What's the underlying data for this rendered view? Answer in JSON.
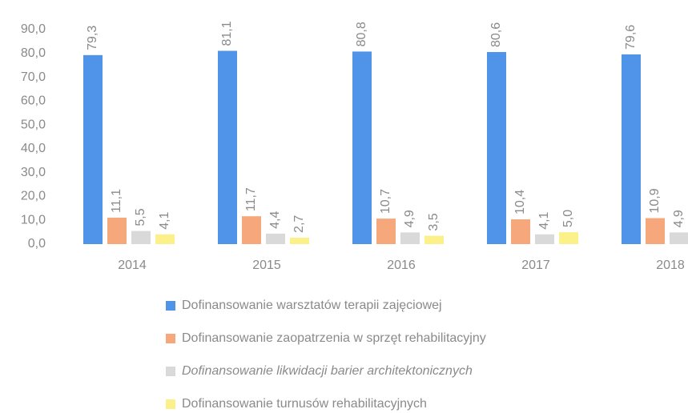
{
  "chart_data": {
    "type": "bar",
    "categories": [
      "2014",
      "2015",
      "2016",
      "2017",
      "2018"
    ],
    "series": [
      {
        "name": "Dofinansowanie warsztatów terapii zajęciowej",
        "color": "#4f94e8",
        "values": [
          79.3,
          81.1,
          80.8,
          80.6,
          79.6
        ],
        "value_labels": [
          "79,3",
          "81,1",
          "80,8",
          "80,6",
          "79,6"
        ]
      },
      {
        "name": "Dofinansowanie zaopatrzenia w sprzęt rehabilitacyjny",
        "color": "#f7a77c",
        "values": [
          11.1,
          11.7,
          10.7,
          10.4,
          10.9
        ],
        "value_labels": [
          "11,1",
          "11,7",
          "10,7",
          "10,4",
          "10,9"
        ]
      },
      {
        "name": "Dofinansowanie likwidacji barier architektonicznych",
        "color": "#d9d9d9",
        "values": [
          5.5,
          4.4,
          4.9,
          4.1,
          4.9
        ],
        "value_labels": [
          "5,5",
          "4,4",
          "4,9",
          "4,1",
          "4,9"
        ]
      },
      {
        "name": "Dofinansowanie turnusów rehabilitacyjnych",
        "color": "#fbf08a",
        "values": [
          4.1,
          2.7,
          3.5,
          5.0,
          null
        ],
        "value_labels": [
          "4,1",
          "2,7",
          "3,5",
          "5,0",
          null
        ]
      }
    ],
    "ylim": [
      0,
      90
    ],
    "yticks": [
      {
        "value": 0,
        "label": "0,0"
      },
      {
        "value": 10,
        "label": "10,0"
      },
      {
        "value": 20,
        "label": "20,0"
      },
      {
        "value": 30,
        "label": "30,0"
      },
      {
        "value": 40,
        "label": "40,0"
      },
      {
        "value": 50,
        "label": "50,0"
      },
      {
        "value": 60,
        "label": "60,0"
      },
      {
        "value": 70,
        "label": "70,0"
      },
      {
        "value": 80,
        "label": "80,0"
      },
      {
        "value": 90,
        "label": "90,0"
      }
    ],
    "grid": false,
    "legend": "bottom"
  }
}
